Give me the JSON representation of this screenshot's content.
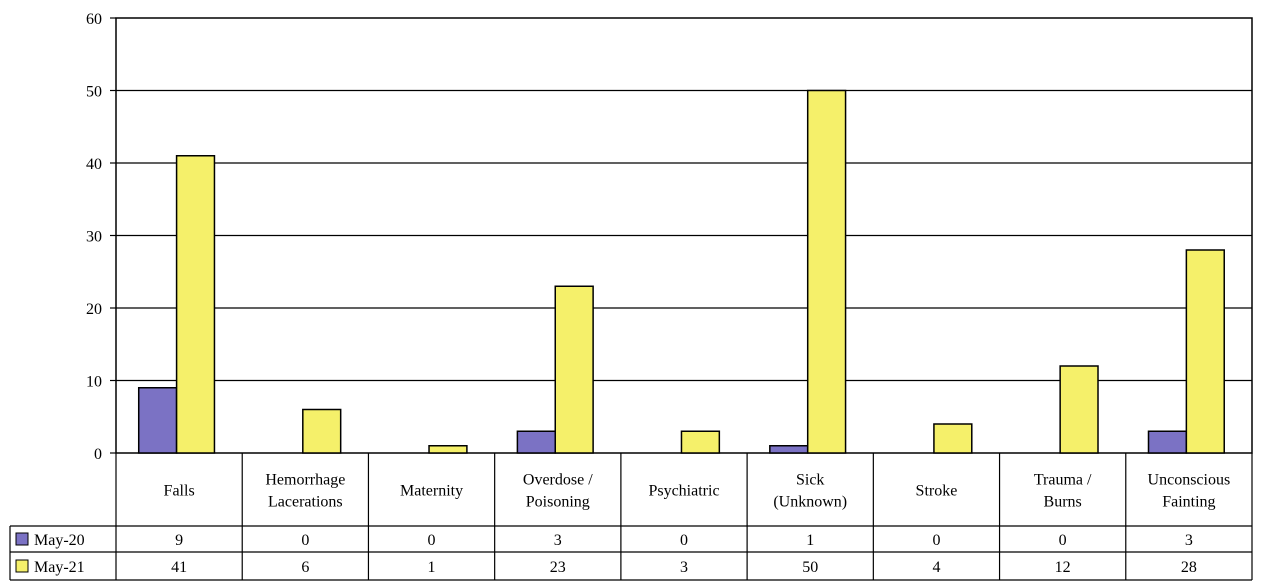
{
  "chart_data": {
    "type": "bar",
    "title": "",
    "xlabel": "",
    "ylabel": "",
    "ylim": [
      0,
      60
    ],
    "yticks": [
      0,
      10,
      20,
      30,
      40,
      50,
      60
    ],
    "grid": true,
    "legend": "left-table",
    "categories": [
      [
        "Falls"
      ],
      [
        "Hemorrhage",
        "Lacerations"
      ],
      [
        "Maternity"
      ],
      [
        "Overdose /",
        "Poisoning"
      ],
      [
        "Psychiatric"
      ],
      [
        "Sick",
        "(Unknown)"
      ],
      [
        "Stroke"
      ],
      [
        "Trauma /",
        "Burns"
      ],
      [
        "Unconscious",
        "Fainting"
      ]
    ],
    "series": [
      {
        "name": "May-20",
        "color": "#7b72c4",
        "values": [
          9,
          0,
          0,
          3,
          0,
          1,
          0,
          0,
          3
        ]
      },
      {
        "name": "May-21",
        "color": "#f5f06a",
        "values": [
          41,
          6,
          1,
          23,
          3,
          50,
          4,
          12,
          28
        ]
      }
    ]
  }
}
